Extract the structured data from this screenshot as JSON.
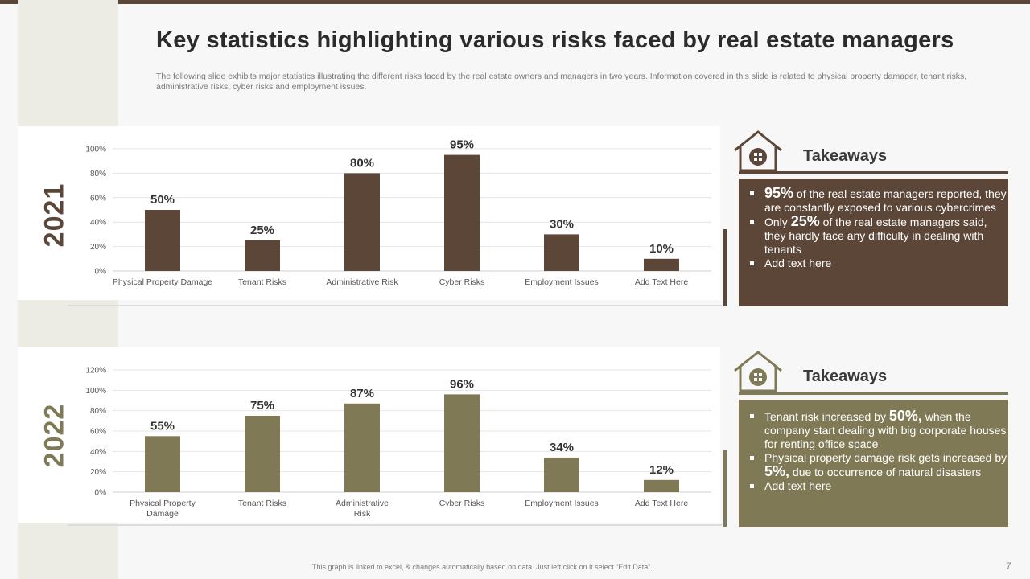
{
  "slide": {
    "title": "Key statistics highlighting various risks faced by real estate managers",
    "subtitle": "The following slide exhibits major statistics illustrating the different risks faced by the real estate owners and managers in two years. Information covered in this slide is related to physical property damager, tenant risks, administrative risks, cyber risks and employment issues.",
    "footer": "This graph is linked to excel, & changes automatically based on data. Just left click on it select “Edit Data”.",
    "page_number": "7"
  },
  "colors": {
    "brown": "#5b4638",
    "olive": "#7f7a55",
    "gridline": "#e4e4e4",
    "axis_text": "#555555"
  },
  "chart_data": [
    {
      "type": "bar",
      "title": "2021",
      "categories": [
        "Physical Property Damage",
        "Tenant Risks",
        "Administrative Risk",
        "Cyber Risks",
        "Employment Issues",
        "Add Text Here"
      ],
      "values": [
        50,
        25,
        80,
        95,
        30,
        10
      ],
      "data_labels": [
        "50%",
        "25%",
        "80%",
        "95%",
        "30%",
        "10%"
      ],
      "yticks": [
        0,
        20,
        40,
        60,
        80,
        100
      ],
      "ytick_labels": [
        "0%",
        "20%",
        "40%",
        "60%",
        "80%",
        "100%"
      ],
      "ylim": [
        0,
        100
      ],
      "grid": true,
      "legend": "none"
    },
    {
      "type": "bar",
      "title": "2022",
      "categories": [
        "Physical Property Damage",
        "Tenant Risks",
        "Administrative Risk",
        "Cyber Risks",
        "Employment Issues",
        "Add Text Here"
      ],
      "values": [
        55,
        75,
        87,
        96,
        34,
        12
      ],
      "data_labels": [
        "55%",
        "75%",
        "87%",
        "96%",
        "34%",
        "12%"
      ],
      "yticks": [
        0,
        20,
        40,
        60,
        80,
        100,
        120
      ],
      "ytick_labels": [
        "0%",
        "20%",
        "40%",
        "60%",
        "80%",
        "100%",
        "120%"
      ],
      "ylim": [
        0,
        120
      ],
      "grid": true,
      "legend": "none"
    }
  ],
  "takeaways": [
    {
      "heading": "Takeaways",
      "items": [
        {
          "pre": "",
          "big": "95%",
          "post": " of the real estate managers reported, they are constantly exposed to various cybercrimes"
        },
        {
          "pre": "Only ",
          "big": "25%",
          "post": " of the real estate managers said, they hardly face any difficulty in dealing with tenants"
        },
        {
          "pre": "Add text here",
          "big": "",
          "post": ""
        }
      ]
    },
    {
      "heading": "Takeaways",
      "items": [
        {
          "pre": "Tenant risk increased by ",
          "big": "50%,",
          "post": " when the company start dealing with big corporate houses for renting office space"
        },
        {
          "pre": "Physical property damage risk gets increased by ",
          "big": "5%,",
          "post": " due to occurrence of natural disasters"
        },
        {
          "pre": "Add text here",
          "big": "",
          "post": ""
        }
      ]
    }
  ]
}
